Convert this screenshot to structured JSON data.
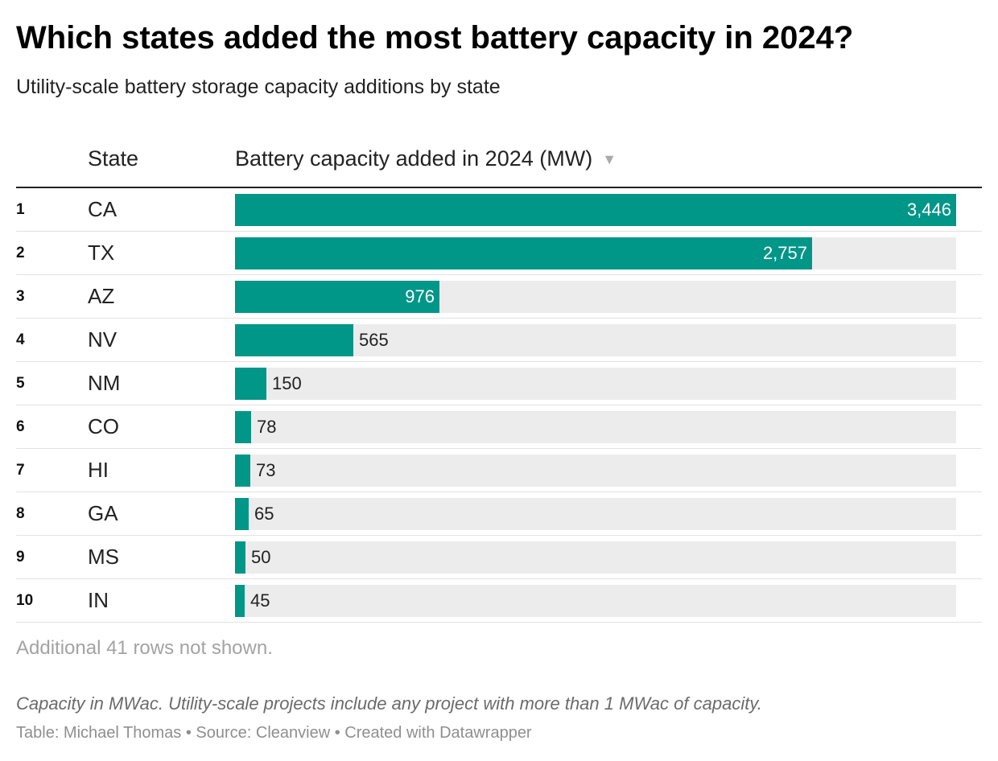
{
  "title": "Which states added the most battery capacity in 2024?",
  "subtitle": "Utility-scale battery storage capacity additions by state",
  "table": {
    "col_state": "State",
    "col_value": "Battery capacity added in 2024 (MW)",
    "sort_indicator": "▼"
  },
  "colors": {
    "bar": "#009688",
    "track": "#ececec"
  },
  "chart_data": {
    "type": "bar",
    "orientation": "horizontal",
    "title": "Which states added the most battery capacity in 2024?",
    "subtitle": "Utility-scale battery storage capacity additions by state",
    "categories": [
      "CA",
      "TX",
      "AZ",
      "NV",
      "NM",
      "CO",
      "HI",
      "GA",
      "MS",
      "IN"
    ],
    "values": [
      3446,
      2757,
      976,
      565,
      150,
      78,
      73,
      65,
      50,
      45
    ],
    "value_labels": [
      "3,446",
      "2,757",
      "976",
      "565",
      "150",
      "78",
      "73",
      "65",
      "50",
      "45"
    ],
    "ranks": [
      "1",
      "2",
      "3",
      "4",
      "5",
      "6",
      "7",
      "8",
      "9",
      "10"
    ],
    "xlim": [
      0,
      3446
    ],
    "unit": "MW"
  },
  "more_rows_note": "Additional 41 rows not shown.",
  "notes": "Capacity in MWac. Utility-scale projects include any project with more than 1 MWac of capacity.",
  "footer": "Table: Michael Thomas • Source: Cleanview • Created with Datawrapper"
}
